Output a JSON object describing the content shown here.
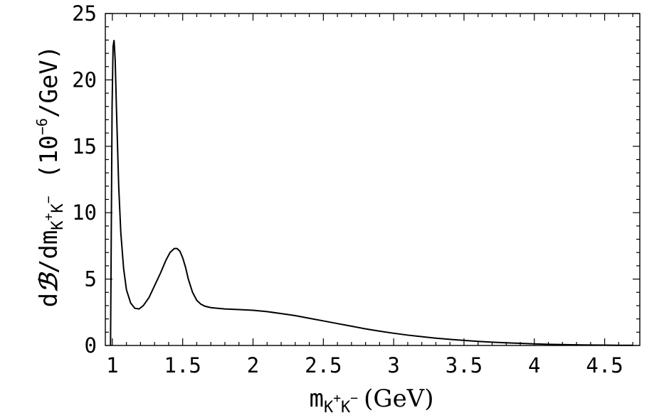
{
  "chart_data": {
    "type": "line",
    "title": "",
    "xlabel": {
      "base": "m",
      "subscript": "K",
      "sup1": "+",
      "subscript2": "K",
      "sup2": "−",
      "units": "(GeV)"
    },
    "ylabel": {
      "prefix": "d",
      "symbol": "ℬ",
      "middle": "/dm",
      "subscript": "K",
      "sup1": "+",
      "subscript2": "K",
      "sup2": "−",
      "units_open": "(10",
      "units_exp": "−6",
      "units_close": "/GeV)"
    },
    "xlim": [
      0.95,
      4.75
    ],
    "ylim": [
      0,
      25
    ],
    "xticks": [
      1,
      1.5,
      2,
      2.5,
      3,
      3.5,
      4,
      4.5
    ],
    "xtick_labels": [
      "1",
      "1.5",
      "2",
      "2.5",
      "3",
      "3.5",
      "4",
      "4.5"
    ],
    "yticks": [
      0,
      5,
      10,
      15,
      20,
      25
    ],
    "ytick_labels": [
      "0",
      "5",
      "10",
      "15",
      "20",
      "25"
    ],
    "grid": false,
    "series": [
      {
        "color": "#000000",
        "x": [
          0.987,
          0.992,
          0.998,
          1.005,
          1.012,
          1.02,
          1.03,
          1.045,
          1.06,
          1.08,
          1.1,
          1.13,
          1.16,
          1.19,
          1.22,
          1.26,
          1.3,
          1.34,
          1.38,
          1.41,
          1.44,
          1.46,
          1.48,
          1.5,
          1.52,
          1.54,
          1.57,
          1.6,
          1.63,
          1.66,
          1.7,
          1.75,
          1.8,
          1.9,
          2.0,
          2.1,
          2.2,
          2.3,
          2.4,
          2.5,
          2.6,
          2.7,
          2.8,
          2.9,
          3.0,
          3.1,
          3.2,
          3.3,
          3.4,
          3.5,
          3.6,
          3.7,
          3.8,
          3.9,
          4.0,
          4.1,
          4.2,
          4.3,
          4.4,
          4.5,
          4.6,
          4.7
        ],
        "y": [
          0.0,
          8.0,
          18.0,
          22.5,
          23.0,
          21.5,
          17.5,
          12.0,
          8.5,
          5.8,
          4.2,
          3.2,
          2.8,
          2.75,
          3.0,
          3.6,
          4.5,
          5.4,
          6.4,
          7.0,
          7.3,
          7.3,
          7.1,
          6.6,
          5.9,
          5.0,
          4.0,
          3.4,
          3.1,
          2.95,
          2.85,
          2.8,
          2.75,
          2.7,
          2.65,
          2.55,
          2.4,
          2.25,
          2.05,
          1.85,
          1.65,
          1.45,
          1.25,
          1.08,
          0.92,
          0.78,
          0.66,
          0.55,
          0.46,
          0.38,
          0.31,
          0.25,
          0.2,
          0.16,
          0.12,
          0.09,
          0.07,
          0.05,
          0.035,
          0.025,
          0.015,
          0.01
        ]
      }
    ]
  }
}
